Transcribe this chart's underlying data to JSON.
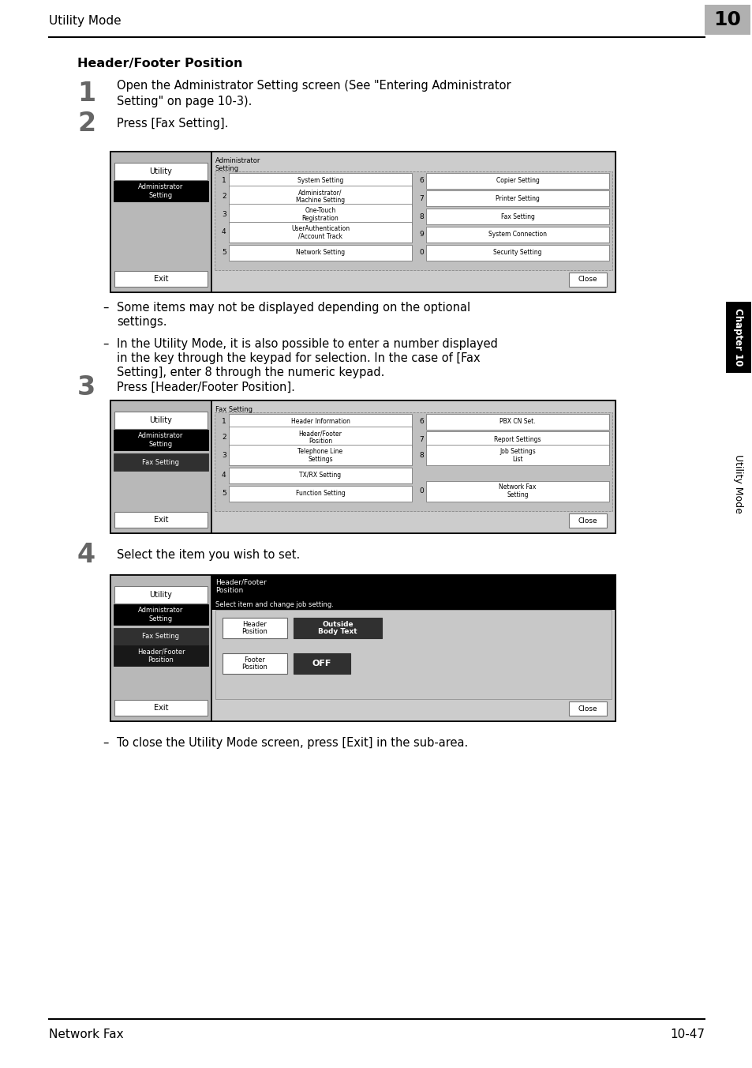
{
  "page_title": "Utility Mode",
  "page_number": "10",
  "footer_left": "Network Fax",
  "footer_right": "10-47",
  "chapter_label": "Chapter 10",
  "sidebar_label": "Utility Mode",
  "section_title": "Header/Footer Position",
  "step1_num": "1",
  "step1_text_line1": "Open the Administrator Setting screen (See \"Entering Administrator",
  "step1_text_line2": "Setting\" on page 10-3).",
  "step2_num": "2",
  "step2_text": "Press [Fax Setting].",
  "step3_num": "3",
  "step3_text": "Press [Header/Footer Position].",
  "step4_num": "4",
  "step4_text": "Select the item you wish to set.",
  "bullet1_line1": "Some items may not be displayed depending on the optional",
  "bullet1_line2": "settings.",
  "bullet2_line1": "In the Utility Mode, it is also possible to enter a number displayed",
  "bullet2_line2": "in the key through the keypad for selection. In the case of [Fax",
  "bullet2_line3": "Setting], enter 8 through the numeric keypad.",
  "bullet3": "To close the Utility Mode screen, press [Exit] in the sub-area.",
  "bg_color": "#ffffff",
  "gray_tab_color": "#b0b0b0",
  "screen_left_bg": "#c0c0c0",
  "screen_right_bg": "#d0d0d0",
  "screen_border": "#000000",
  "btn_bg": "#ffffff",
  "black_btn_bg": "#000000",
  "dark_btn_bg": "#404040"
}
